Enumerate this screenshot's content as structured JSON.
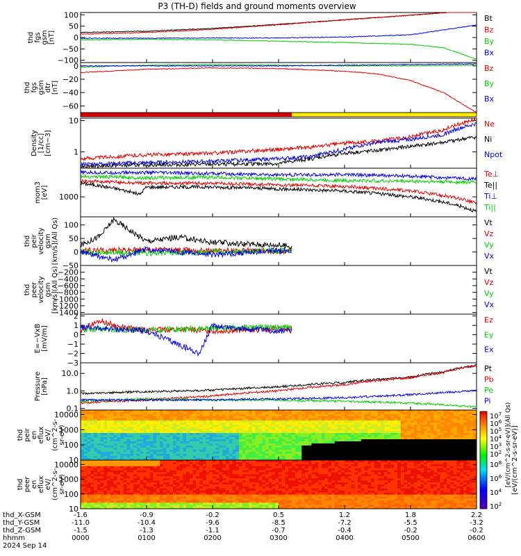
{
  "title": "P3 (TH-D) fields and ground moments overview",
  "chart_data": [
    {
      "id": "fgs_gsm",
      "type": "line",
      "ylabel": [
        "thd",
        "fgs",
        "gsm",
        "[nT]"
      ],
      "yticks": [
        "100",
        "50",
        "0",
        "−50",
        "−100"
      ],
      "tick_values": [
        100,
        50,
        0,
        -50,
        -100
      ],
      "ylim": [
        -110,
        110
      ],
      "x_end_hours": 6.0,
      "series": [
        {
          "name": "Bt",
          "color": "#000000",
          "x": [
            0,
            1,
            2,
            3,
            4,
            5,
            6
          ],
          "values": [
            22,
            28,
            40,
            58,
            78,
            98,
            120
          ]
        },
        {
          "name": "Bz",
          "color": "#dd0000",
          "x": [
            0,
            1,
            2,
            3,
            4,
            5,
            6
          ],
          "values": [
            15,
            22,
            36,
            56,
            78,
            98,
            120
          ]
        },
        {
          "name": "By",
          "color": "#00cc00",
          "x": [
            0,
            1,
            2,
            3,
            4,
            5,
            5.5,
            6
          ],
          "values": [
            -10,
            -8,
            -10,
            -16,
            -22,
            -30,
            -45,
            -95
          ]
        },
        {
          "name": "Bx",
          "color": "#0000dd",
          "x": [
            0,
            1,
            2,
            3,
            4,
            5,
            6
          ],
          "values": [
            -3,
            -3,
            -2,
            -2,
            2,
            12,
            55
          ]
        }
      ]
    },
    {
      "id": "fgs_gsm_detrended",
      "type": "line",
      "ylabel": [
        "thd",
        "fgs",
        "gsm",
        "dtr",
        "[nT]"
      ],
      "yticks": [
        "0",
        "−20",
        "−40",
        "−60"
      ],
      "tick_values": [
        0,
        -20,
        -40,
        -60
      ],
      "ylim": [
        -70,
        5
      ],
      "x_end_hours": 6.0,
      "series": [
        {
          "name": "Bz",
          "color": "#dd0000",
          "x": [
            0,
            1,
            2,
            3,
            4,
            4.5,
            5,
            5.5,
            6
          ],
          "values": [
            -10,
            -5,
            -3,
            -4,
            -8,
            -12,
            -22,
            -40,
            -70
          ]
        },
        {
          "name": "By",
          "color": "#00cc00",
          "x": [
            0,
            1,
            2,
            3,
            4,
            5,
            6
          ],
          "values": [
            -2,
            1,
            2,
            1,
            0,
            0,
            1
          ]
        },
        {
          "name": "Bx",
          "color": "#0000dd",
          "x": [
            0,
            1,
            2,
            3,
            4,
            5,
            6
          ],
          "values": [
            0,
            0,
            0,
            0,
            1,
            2,
            3
          ]
        }
      ]
    },
    {
      "id": "density",
      "type": "line",
      "ylabel": [
        "Density",
        "[1/cc]",
        "[cm−3]"
      ],
      "yscale": "log",
      "yticks": [
        "10",
        "1"
      ],
      "tick_values": [
        10,
        1
      ],
      "ylim": [
        0.3,
        12
      ],
      "x_end_hours": 6.0,
      "series": [
        {
          "name": "Ne",
          "color": "#dd0000",
          "x": [
            0,
            1,
            2,
            3,
            3.5,
            4,
            4.5,
            5,
            5.5,
            6
          ],
          "values": [
            0.6,
            0.8,
            0.9,
            1.2,
            1.4,
            1.9,
            2.2,
            3.0,
            5.0,
            11
          ]
        },
        {
          "name": "Ni",
          "color": "#000000",
          "x": [
            0,
            1,
            2,
            3,
            3.5,
            4,
            4.5,
            5,
            5.5,
            6
          ],
          "values": [
            0.35,
            0.38,
            0.4,
            0.42,
            0.6,
            0.9,
            1.1,
            1.5,
            2.0,
            3.0
          ]
        },
        {
          "name": "Npot",
          "color": "#0000dd",
          "x": [
            0,
            1,
            2,
            3,
            3.5,
            4,
            4.5,
            5,
            5.5,
            6
          ],
          "values": [
            0.4,
            0.45,
            0.5,
            0.6,
            0.7,
            1.2,
            2.0,
            2.5,
            3.5,
            8.0
          ]
        }
      ]
    },
    {
      "id": "temperature",
      "type": "line",
      "ylabel": [
        "mom3",
        "[eV]"
      ],
      "yscale": "log",
      "yticks": [
        "1000"
      ],
      "tick_values": [
        1000
      ],
      "ylim": [
        200,
        10000
      ],
      "x_end_hours": 6.0,
      "series": [
        {
          "name": "Te⊥",
          "color": "#dd0000",
          "x": [
            0,
            1,
            2,
            3,
            4,
            5,
            6
          ],
          "values": [
            3500,
            3000,
            3000,
            2600,
            2300,
            1600,
            600
          ]
        },
        {
          "name": "Te||",
          "color": "#000000",
          "x": [
            0,
            0.9,
            1.0,
            2,
            3,
            4,
            5,
            6
          ],
          "values": [
            3000,
            1200,
            2200,
            2200,
            1900,
            1600,
            1000,
            300
          ]
        },
        {
          "name": "Ti⊥",
          "color": "#0000dd",
          "x": [
            0,
            1,
            2,
            3,
            4,
            5,
            6
          ],
          "values": [
            7000,
            7000,
            6500,
            5800,
            6000,
            5200,
            4200
          ]
        },
        {
          "name": "Ti||",
          "color": "#00cc00",
          "x": [
            0,
            1,
            2,
            3,
            4,
            5,
            6
          ],
          "values": [
            5200,
            4600,
            4800,
            4200,
            3700,
            3500,
            3200
          ]
        }
      ]
    },
    {
      "id": "peir_velocity",
      "type": "line",
      "ylabel": [
        "thd",
        "peir",
        "velocity",
        "gsm",
        "[km/s](All Qs)"
      ],
      "yticks": [
        "100",
        "50",
        "0",
        "−50"
      ],
      "tick_values": [
        100,
        50,
        0,
        -50
      ],
      "ylim": [
        -50,
        130
      ],
      "x_end_hours": 3.2,
      "series": [
        {
          "name": "Vt",
          "color": "#000000",
          "x": [
            0,
            0.3,
            0.5,
            1,
            1.5,
            2,
            2.5,
            3,
            3.2
          ],
          "values": [
            25,
            60,
            120,
            40,
            55,
            35,
            30,
            25,
            20
          ]
        },
        {
          "name": "Vz",
          "color": "#dd0000",
          "x": [
            0,
            1,
            2,
            3,
            3.2
          ],
          "values": [
            5,
            8,
            5,
            3,
            2
          ]
        },
        {
          "name": "Vy",
          "color": "#00cc00",
          "x": [
            0,
            1,
            2,
            3,
            3.2
          ],
          "values": [
            0,
            -5,
            0,
            5,
            5
          ]
        },
        {
          "name": "Vx",
          "color": "#0000dd",
          "x": [
            0,
            0.5,
            1,
            2,
            3,
            3.2
          ],
          "values": [
            0,
            -30,
            10,
            -10,
            5,
            5
          ]
        }
      ]
    },
    {
      "id": "peer_velocity",
      "type": "line",
      "ylabel": [
        "thd",
        "peer",
        "velocity",
        "gsm",
        "[km/s](All Qs)"
      ],
      "yticks": [
        "−200",
        "−400",
        "−600",
        "−800",
        "−1000",
        "−1200",
        "−1400"
      ],
      "tick_values": [
        -200,
        -400,
        -600,
        -800,
        -1000,
        -1200,
        -1400
      ],
      "ylim": [
        -1450,
        0
      ],
      "x_end_hours": 6.0,
      "series": [
        {
          "name": "Vt",
          "color": "#000000",
          "x": [],
          "values": []
        },
        {
          "name": "Vz",
          "color": "#dd0000",
          "x": [],
          "values": []
        },
        {
          "name": "Vy",
          "color": "#00cc00",
          "x": [],
          "values": []
        },
        {
          "name": "Vx",
          "color": "#0000dd",
          "x": [],
          "values": []
        }
      ]
    },
    {
      "id": "efield",
      "type": "line",
      "ylabel": [
        "E=−VxB",
        "[mV/m]"
      ],
      "yticks": [
        "2",
        "1",
        "0",
        "−1",
        "−2",
        "−3"
      ],
      "tick_values": [
        2,
        1,
        0,
        -1,
        -2,
        -3
      ],
      "ylim": [
        -3,
        2.2
      ],
      "x_end_hours": 3.2,
      "series": [
        {
          "name": "Ez",
          "color": "#dd0000",
          "x": [
            0,
            0.3,
            0.6,
            1,
            1.5,
            2,
            2.5,
            3,
            3.2
          ],
          "values": [
            0.5,
            1.5,
            0.8,
            0.5,
            0.6,
            0.4,
            0.5,
            0.6,
            0.6
          ]
        },
        {
          "name": "Ey",
          "color": "#00cc00",
          "x": [
            0,
            1,
            2,
            3,
            3.2
          ],
          "values": [
            0.6,
            0.5,
            0.7,
            0.8,
            0.8
          ]
        },
        {
          "name": "Ex",
          "color": "#0000dd",
          "x": [
            0,
            1,
            1.8,
            2,
            2.5,
            3,
            3.2
          ],
          "values": [
            0.8,
            0.4,
            -2.0,
            1.0,
            0.6,
            0.4,
            0.5
          ]
        }
      ]
    },
    {
      "id": "pressure",
      "type": "line",
      "ylabel": [
        "Pressure",
        "[nPa]"
      ],
      "yscale": "log",
      "yticks": [
        "10.0",
        "1.0",
        "0.1"
      ],
      "tick_values": [
        10,
        1,
        0.1
      ],
      "ylim": [
        0.08,
        40
      ],
      "x_end_hours": 6.0,
      "series": [
        {
          "name": "Pt",
          "color": "#000000",
          "x": [
            0,
            1,
            2,
            3,
            4,
            5,
            5.5,
            6
          ],
          "values": [
            0.7,
            0.9,
            1.1,
            1.7,
            3.0,
            6.0,
            12,
            28
          ]
        },
        {
          "name": "Pb",
          "color": "#dd0000",
          "x": [
            0,
            1,
            2,
            3,
            4,
            5,
            5.5,
            6
          ],
          "values": [
            0.2,
            0.3,
            0.5,
            1.0,
            2.2,
            5.5,
            11,
            28
          ]
        },
        {
          "name": "Pe",
          "color": "#00cc00",
          "x": [
            0,
            1,
            2,
            3,
            4,
            5,
            6
          ],
          "values": [
            0.25,
            0.35,
            0.3,
            0.3,
            0.25,
            0.2,
            0.12
          ]
        },
        {
          "name": "Pi",
          "color": "#0000dd",
          "x": [
            0,
            1,
            2,
            3,
            4,
            5,
            6
          ],
          "values": [
            0.3,
            0.3,
            0.3,
            0.35,
            0.4,
            0.6,
            1.0
          ]
        }
      ]
    },
    {
      "id": "peir_en_eflux",
      "type": "heatmap",
      "ylabel": [
        "thd",
        "peir",
        "en",
        "eflux",
        "eV/",
        "(cm^2-s-",
        "sr-eV)"
      ],
      "yscale": "log",
      "yticks": [
        "10000",
        "1000",
        "100",
        "10"
      ],
      "tick_values": [
        10000,
        1000,
        100,
        10
      ]
    },
    {
      "id": "peer_en_eflux",
      "type": "heatmap",
      "ylabel": [
        "thd",
        "peer",
        "en",
        "eflux",
        "eV/",
        "(cm^2-s-",
        "sr-eV)"
      ],
      "yscale": "log",
      "yticks": [
        "10000",
        "1000",
        "100",
        "10"
      ],
      "tick_values": [
        10000,
        1000,
        100,
        10
      ]
    }
  ],
  "colorbar": {
    "ticks_top": [
      "10^7",
      "10^6",
      "10^5",
      "10^4",
      "10^3",
      "10^2"
    ],
    "ticks_bottom": [
      "10^8",
      "10^6",
      "10^4",
      "10^2"
    ],
    "unit_label": "[eV/(cm^2-s-sr-eV)]",
    "unit_label_overlay": "[eV/(cm^2-s-sr-eV)](All Qs)"
  },
  "x_axis": {
    "row_labels": [
      "thd_X-GSM",
      "thd_Y-GSM",
      "thd_Z-GSM",
      "hhmm",
      "2024 Sep 14"
    ],
    "columns": [
      [
        "-1.6",
        "-11.0",
        "-1.5",
        "0000"
      ],
      [
        "-0.9",
        "-10.4",
        "-1.3",
        "0100"
      ],
      [
        "-0.2",
        "-9.6",
        "-1.1",
        "0200"
      ],
      [
        "0.5",
        "-8.5",
        "-0.7",
        "0300"
      ],
      [
        "1.2",
        "-7.2",
        "-0.4",
        "0400"
      ],
      [
        "1.8",
        "-5.5",
        "-0.2",
        "0500"
      ],
      [
        "2.2",
        "-3.2",
        "-0.2",
        "0600"
      ]
    ]
  },
  "mode_bar": {
    "segments": [
      {
        "color": "#dd0000",
        "x": [
          0,
          3.2
        ]
      },
      {
        "color": "#ffee00",
        "x": [
          3.2,
          6.0
        ]
      }
    ]
  }
}
